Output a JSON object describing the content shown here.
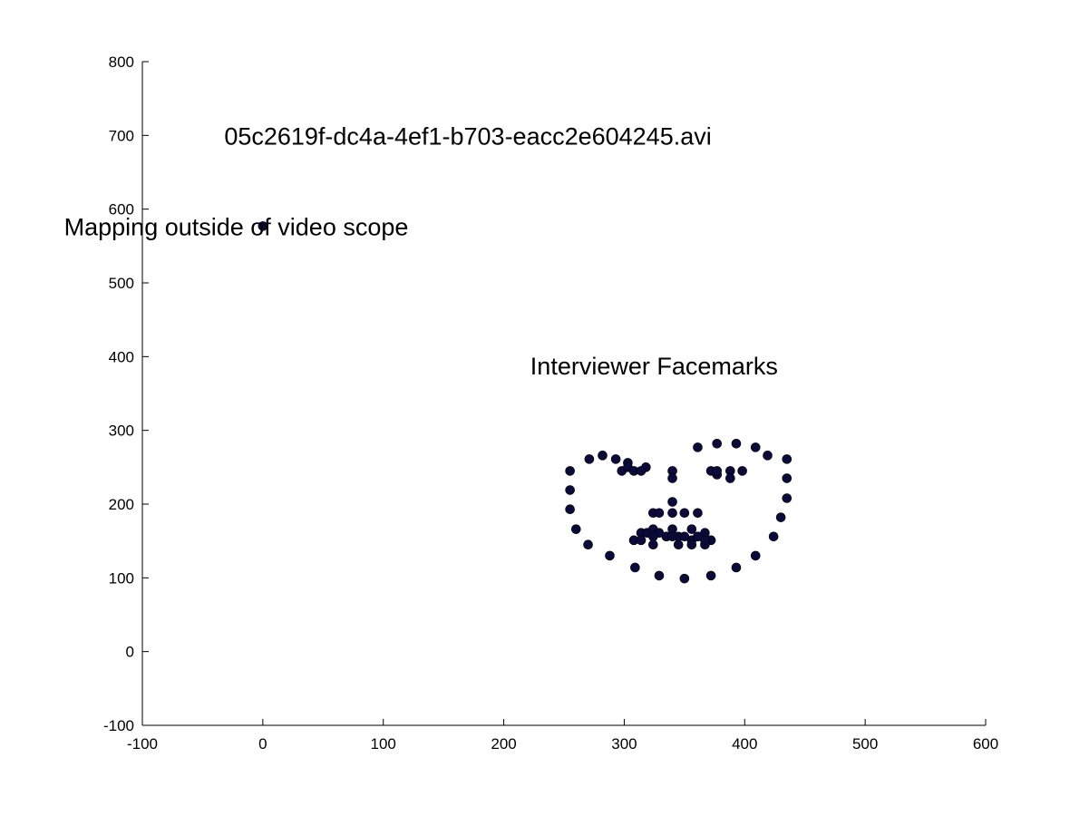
{
  "chart_data": {
    "type": "scatter",
    "xlim": [
      -100,
      600
    ],
    "ylim": [
      -100,
      800
    ],
    "x_ticks": [
      "-100",
      "0",
      "100",
      "200",
      "300",
      "400",
      "500",
      "600"
    ],
    "y_ticks": [
      "-100",
      "0",
      "100",
      "200",
      "300",
      "400",
      "500",
      "600",
      "700",
      "800"
    ],
    "grid": false,
    "marker_color": "#0a0a3c",
    "annotations": [
      {
        "text": "05c2619f-dc4a-4ef1-b703-eacc2e604245.avi",
        "x": -32,
        "y": 700
      },
      {
        "text": "Mapping outside of video scope",
        "x": -165,
        "y": 577
      },
      {
        "text": "Interviewer Facemarks",
        "x": 222,
        "y": 388
      }
    ],
    "series": [
      {
        "points": [
          [
            0,
            577
          ],
          [
            255,
            245
          ],
          [
            255,
            219
          ],
          [
            255,
            193
          ],
          [
            260,
            166
          ],
          [
            270,
            145
          ],
          [
            288,
            130
          ],
          [
            309,
            114
          ],
          [
            329,
            103
          ],
          [
            350,
            99
          ],
          [
            372,
            103
          ],
          [
            393,
            114
          ],
          [
            409,
            130
          ],
          [
            424,
            156
          ],
          [
            430,
            182
          ],
          [
            435,
            208
          ],
          [
            435,
            235
          ],
          [
            435,
            261
          ],
          [
            271,
            261
          ],
          [
            282,
            266
          ],
          [
            293,
            261
          ],
          [
            303,
            256
          ],
          [
            318,
            250
          ],
          [
            361,
            277
          ],
          [
            377,
            282
          ],
          [
            393,
            282
          ],
          [
            409,
            277
          ],
          [
            419,
            266
          ],
          [
            340,
            245
          ],
          [
            340,
            235
          ],
          [
            340,
            203
          ],
          [
            340,
            188
          ],
          [
            324,
            188
          ],
          [
            329,
            188
          ],
          [
            350,
            188
          ],
          [
            361,
            188
          ],
          [
            298,
            245
          ],
          [
            303,
            250
          ],
          [
            308,
            245
          ],
          [
            314,
            245
          ],
          [
            372,
            245
          ],
          [
            377,
            240
          ],
          [
            388,
            245
          ],
          [
            398,
            245
          ],
          [
            388,
            235
          ],
          [
            377,
            245
          ],
          [
            308,
            151
          ],
          [
            314,
            161
          ],
          [
            319,
            161
          ],
          [
            324,
            166
          ],
          [
            329,
            161
          ],
          [
            335,
            156
          ],
          [
            340,
            166
          ],
          [
            345,
            145
          ],
          [
            356,
            166
          ],
          [
            356,
            151
          ],
          [
            361,
            156
          ],
          [
            367,
            161
          ],
          [
            372,
            151
          ],
          [
            367,
            145
          ],
          [
            356,
            145
          ],
          [
            345,
            156
          ],
          [
            335,
            156
          ],
          [
            324,
            156
          ],
          [
            314,
            151
          ],
          [
            324,
            145
          ],
          [
            340,
            156
          ],
          [
            350,
            156
          ],
          [
            361,
            156
          ],
          [
            367,
            151
          ]
        ]
      }
    ]
  }
}
